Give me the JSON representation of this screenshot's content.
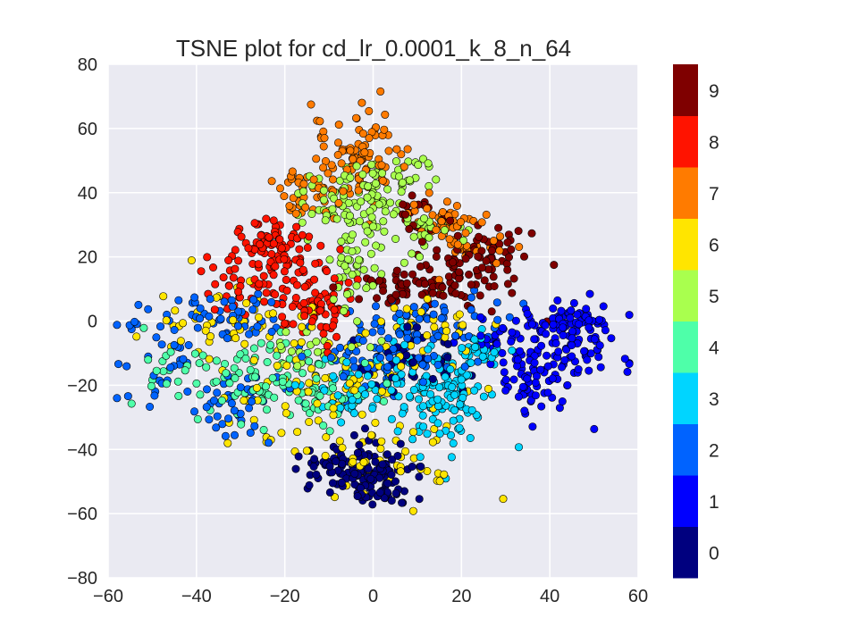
{
  "chart_data": {
    "type": "scatter",
    "title": "TSNE plot for cd_lr_0.0001_k_8_n_64",
    "xlabel": "",
    "ylabel": "",
    "xlim": [
      -60,
      60
    ],
    "ylim": [
      -80,
      80
    ],
    "x_ticks": [
      -60,
      -40,
      -20,
      0,
      20,
      40,
      60
    ],
    "y_ticks": [
      -80,
      -60,
      -40,
      -20,
      0,
      20,
      40,
      60,
      80
    ],
    "x_tick_labels": [
      "−60",
      "−40",
      "−20",
      "0",
      "20",
      "40",
      "60"
    ],
    "y_tick_labels": [
      "−80",
      "−60",
      "−40",
      "−20",
      "0",
      "20",
      "40",
      "60",
      "80"
    ],
    "grid": true,
    "background_color": "#EAEAF2",
    "colorbar": {
      "labels": [
        "0",
        "1",
        "2",
        "3",
        "4",
        "5",
        "6",
        "7",
        "8",
        "9"
      ],
      "colors": [
        "#00007F",
        "#0000FF",
        "#0063FF",
        "#00D5FF",
        "#4EFFA9",
        "#A9FF4E",
        "#FFE500",
        "#FF7B00",
        "#FF1300",
        "#7F0000"
      ]
    },
    "clusters": [
      {
        "label": 0,
        "center": [
          -4,
          -46
        ],
        "spread": [
          6,
          4
        ],
        "count": 110
      },
      {
        "label": 0,
        "center": [
          2,
          -53
        ],
        "spread": [
          4,
          3
        ],
        "count": 40
      },
      {
        "label": 0,
        "center": [
          8,
          -12
        ],
        "spread": [
          8,
          5
        ],
        "count": 40
      },
      {
        "label": 1,
        "center": [
          42,
          -8
        ],
        "spread": [
          6,
          7
        ],
        "count": 120
      },
      {
        "label": 1,
        "center": [
          44,
          0
        ],
        "spread": [
          5,
          2
        ],
        "count": 35
      },
      {
        "label": 1,
        "center": [
          34,
          -20
        ],
        "spread": [
          3,
          6
        ],
        "count": 35
      },
      {
        "label": 1,
        "center": [
          28,
          -4
        ],
        "spread": [
          4,
          3
        ],
        "count": 20
      },
      {
        "label": 2,
        "center": [
          4,
          -10
        ],
        "spread": [
          10,
          6
        ],
        "count": 90
      },
      {
        "label": 2,
        "center": [
          -38,
          0
        ],
        "spread": [
          9,
          4
        ],
        "count": 60
      },
      {
        "label": 2,
        "center": [
          -30,
          -25
        ],
        "spread": [
          6,
          5
        ],
        "count": 40
      },
      {
        "label": 2,
        "center": [
          -48,
          -12
        ],
        "spread": [
          4,
          8
        ],
        "count": 25
      },
      {
        "label": 2,
        "center": [
          14,
          0
        ],
        "spread": [
          8,
          4
        ],
        "count": 40
      },
      {
        "label": 3,
        "center": [
          16,
          -22
        ],
        "spread": [
          6,
          8
        ],
        "count": 120
      },
      {
        "label": 3,
        "center": [
          -4,
          -20
        ],
        "spread": [
          8,
          5
        ],
        "count": 60
      },
      {
        "label": 3,
        "center": [
          24,
          -10
        ],
        "spread": [
          3,
          4
        ],
        "count": 30
      },
      {
        "label": 4,
        "center": [
          -24,
          -18
        ],
        "spread": [
          7,
          6
        ],
        "count": 70
      },
      {
        "label": 4,
        "center": [
          -10,
          -22
        ],
        "spread": [
          5,
          5
        ],
        "count": 40
      },
      {
        "label": 4,
        "center": [
          -44,
          -20
        ],
        "spread": [
          4,
          5
        ],
        "count": 25
      },
      {
        "label": 5,
        "center": [
          -4,
          36
        ],
        "spread": [
          6,
          6
        ],
        "count": 90
      },
      {
        "label": 5,
        "center": [
          4,
          46
        ],
        "spread": [
          5,
          4
        ],
        "count": 30
      },
      {
        "label": 5,
        "center": [
          -4,
          16
        ],
        "spread": [
          3,
          5
        ],
        "count": 35
      },
      {
        "label": 5,
        "center": [
          12,
          28
        ],
        "spread": [
          4,
          4
        ],
        "count": 25
      },
      {
        "label": 5,
        "center": [
          -12,
          -10
        ],
        "spread": [
          6,
          3
        ],
        "count": 25
      },
      {
        "label": 6,
        "center": [
          -10,
          -18
        ],
        "spread": [
          14,
          12
        ],
        "count": 110
      },
      {
        "label": 6,
        "center": [
          4,
          -44
        ],
        "spread": [
          8,
          5
        ],
        "count": 40
      },
      {
        "label": 6,
        "center": [
          -36,
          0
        ],
        "spread": [
          9,
          5
        ],
        "count": 35
      },
      {
        "label": 6,
        "center": [
          16,
          -2
        ],
        "spread": [
          8,
          5
        ],
        "count": 25
      },
      {
        "label": 7,
        "center": [
          -4,
          52
        ],
        "spread": [
          5,
          7
        ],
        "count": 90
      },
      {
        "label": 7,
        "center": [
          -14,
          40
        ],
        "spread": [
          4,
          4
        ],
        "count": 40
      },
      {
        "label": 7,
        "center": [
          16,
          30
        ],
        "spread": [
          5,
          4
        ],
        "count": 40
      },
      {
        "label": 7,
        "center": [
          24,
          24
        ],
        "spread": [
          4,
          4
        ],
        "count": 20
      },
      {
        "label": 8,
        "center": [
          -22,
          20
        ],
        "spread": [
          5,
          6
        ],
        "count": 70
      },
      {
        "label": 8,
        "center": [
          -14,
          6
        ],
        "spread": [
          5,
          6
        ],
        "count": 80
      },
      {
        "label": 8,
        "center": [
          -26,
          26
        ],
        "spread": [
          4,
          2
        ],
        "count": 25
      },
      {
        "label": 8,
        "center": [
          -32,
          12
        ],
        "spread": [
          3,
          6
        ],
        "count": 25
      },
      {
        "label": 9,
        "center": [
          8,
          10
        ],
        "spread": [
          6,
          3
        ],
        "count": 60
      },
      {
        "label": 9,
        "center": [
          24,
          18
        ],
        "spread": [
          6,
          6
        ],
        "count": 80
      },
      {
        "label": 9,
        "center": [
          10,
          32
        ],
        "spread": [
          3,
          4
        ],
        "count": 20
      }
    ]
  }
}
